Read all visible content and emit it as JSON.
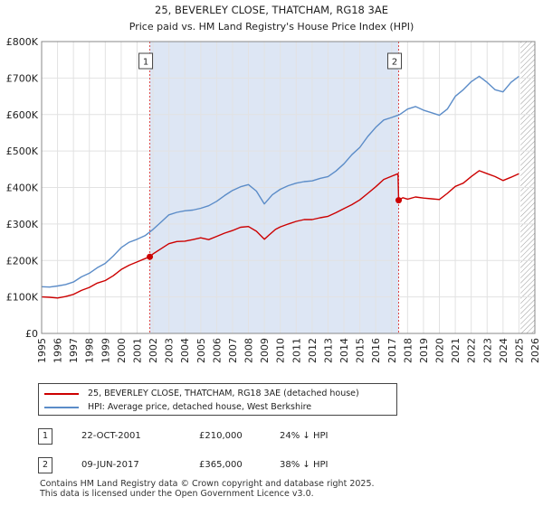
{
  "chart_data": {
    "type": "line",
    "title": "25, BEVERLEY CLOSE, THATCHAM, RG18 3AE",
    "subtitle": "Price paid vs. HM Land Registry's House Price Index (HPI)",
    "xlim": [
      1995,
      2026
    ],
    "ylim": [
      0,
      800000
    ],
    "x_ticks": [
      1995,
      1996,
      1997,
      1998,
      1999,
      2000,
      2001,
      2002,
      2003,
      2004,
      2005,
      2006,
      2007,
      2008,
      2009,
      2010,
      2011,
      2012,
      2013,
      2014,
      2015,
      2016,
      2017,
      2018,
      2019,
      2020,
      2021,
      2022,
      2023,
      2024,
      2025,
      2026
    ],
    "y_ticks": [
      {
        "value": 0,
        "label": "£0"
      },
      {
        "value": 100000,
        "label": "£100K"
      },
      {
        "value": 200000,
        "label": "£200K"
      },
      {
        "value": 300000,
        "label": "£300K"
      },
      {
        "value": 400000,
        "label": "£400K"
      },
      {
        "value": 500000,
        "label": "£500K"
      },
      {
        "value": 600000,
        "label": "£600K"
      },
      {
        "value": 700000,
        "label": "£700K"
      },
      {
        "value": 800000,
        "label": "£800K"
      }
    ],
    "shaded_period": [
      2001.8,
      2017.44
    ],
    "forecast_start": 2025.1,
    "series": [
      {
        "name": "25, BEVERLEY CLOSE, THATCHAM, RG18 3AE (detached house)",
        "color": "#cc0000",
        "x": [
          1995.0,
          1995.5,
          1996.0,
          1996.5,
          1997.0,
          1997.5,
          1998.0,
          1998.5,
          1999.0,
          1999.5,
          2000.0,
          2000.5,
          2001.0,
          2001.5,
          2001.8,
          2002.0,
          2002.5,
          2003.0,
          2003.5,
          2004.0,
          2004.5,
          2005.0,
          2005.5,
          2006.0,
          2006.5,
          2007.0,
          2007.5,
          2008.0,
          2008.5,
          2009.0,
          2009.3,
          2009.7,
          2010.0,
          2010.5,
          2011.0,
          2011.5,
          2012.0,
          2012.5,
          2013.0,
          2013.5,
          2014.0,
          2014.5,
          2015.0,
          2015.5,
          2016.0,
          2016.5,
          2017.0,
          2017.4,
          2017.44,
          2017.7,
          2018.0,
          2018.5,
          2019.0,
          2019.5,
          2020.0,
          2020.5,
          2021.0,
          2021.5,
          2022.0,
          2022.5,
          2023.0,
          2023.5,
          2024.0,
          2024.5,
          2025.0
        ],
        "values": [
          100000,
          99000,
          97000,
          101000,
          107000,
          118000,
          126000,
          138000,
          145000,
          158000,
          175000,
          187000,
          196000,
          205000,
          210000,
          218000,
          232000,
          246000,
          252000,
          253000,
          257000,
          262000,
          257000,
          266000,
          275000,
          282000,
          291000,
          293000,
          280000,
          258000,
          270000,
          285000,
          292000,
          300000,
          307000,
          312000,
          312000,
          317000,
          321000,
          331000,
          342000,
          353000,
          366000,
          384000,
          402000,
          422000,
          431000,
          438000,
          365000,
          372000,
          368000,
          374000,
          371000,
          369000,
          367000,
          384000,
          403000,
          412000,
          430000,
          446000,
          438000,
          430000,
          419000,
          428000,
          438000
        ]
      },
      {
        "name": "HPI: Average price, detached house, West Berkshire",
        "color": "#5b8cc8",
        "x": [
          1995.0,
          1995.5,
          1996.0,
          1996.5,
          1997.0,
          1997.5,
          1998.0,
          1998.5,
          1999.0,
          1999.5,
          2000.0,
          2000.5,
          2001.0,
          2001.5,
          2002.0,
          2002.5,
          2003.0,
          2003.5,
          2004.0,
          2004.5,
          2005.0,
          2005.5,
          2006.0,
          2006.5,
          2007.0,
          2007.5,
          2008.0,
          2008.5,
          2009.0,
          2009.5,
          2010.0,
          2010.5,
          2011.0,
          2011.5,
          2012.0,
          2012.5,
          2013.0,
          2013.5,
          2014.0,
          2014.5,
          2015.0,
          2015.5,
          2016.0,
          2016.5,
          2017.0,
          2017.5,
          2018.0,
          2018.5,
          2019.0,
          2019.5,
          2020.0,
          2020.5,
          2021.0,
          2021.5,
          2022.0,
          2022.5,
          2023.0,
          2023.5,
          2024.0,
          2024.5,
          2025.0
        ],
        "values": [
          128000,
          127000,
          130000,
          134000,
          141000,
          155000,
          165000,
          180000,
          192000,
          212000,
          235000,
          250000,
          258000,
          268000,
          285000,
          305000,
          325000,
          332000,
          336000,
          338000,
          343000,
          350000,
          362000,
          378000,
          392000,
          402000,
          408000,
          390000,
          355000,
          380000,
          395000,
          405000,
          412000,
          416000,
          418000,
          425000,
          430000,
          445000,
          465000,
          490000,
          510000,
          540000,
          565000,
          585000,
          592000,
          600000,
          615000,
          622000,
          612000,
          605000,
          598000,
          615000,
          650000,
          668000,
          690000,
          705000,
          688000,
          668000,
          662000,
          688000,
          705000
        ]
      }
    ],
    "markers": [
      {
        "label": "1",
        "x": 2001.8,
        "y": 210000
      },
      {
        "label": "2",
        "x": 2017.44,
        "y": 365000
      }
    ]
  },
  "legend": {
    "property_label": "25, BEVERLEY CLOSE, THATCHAM, RG18 3AE (detached house)",
    "hpi_label": "HPI: Average price, detached house, West Berkshire"
  },
  "sales": [
    {
      "num": "1",
      "date": "22-OCT-2001",
      "price": "£210,000",
      "hpi_diff": "24% ↓ HPI"
    },
    {
      "num": "2",
      "date": "09-JUN-2017",
      "price": "£365,000",
      "hpi_diff": "38% ↓ HPI"
    }
  ],
  "footer": {
    "line1": "Contains HM Land Registry data © Crown copyright and database right 2025.",
    "line2": "This data is licensed under the Open Government Licence v3.0."
  }
}
